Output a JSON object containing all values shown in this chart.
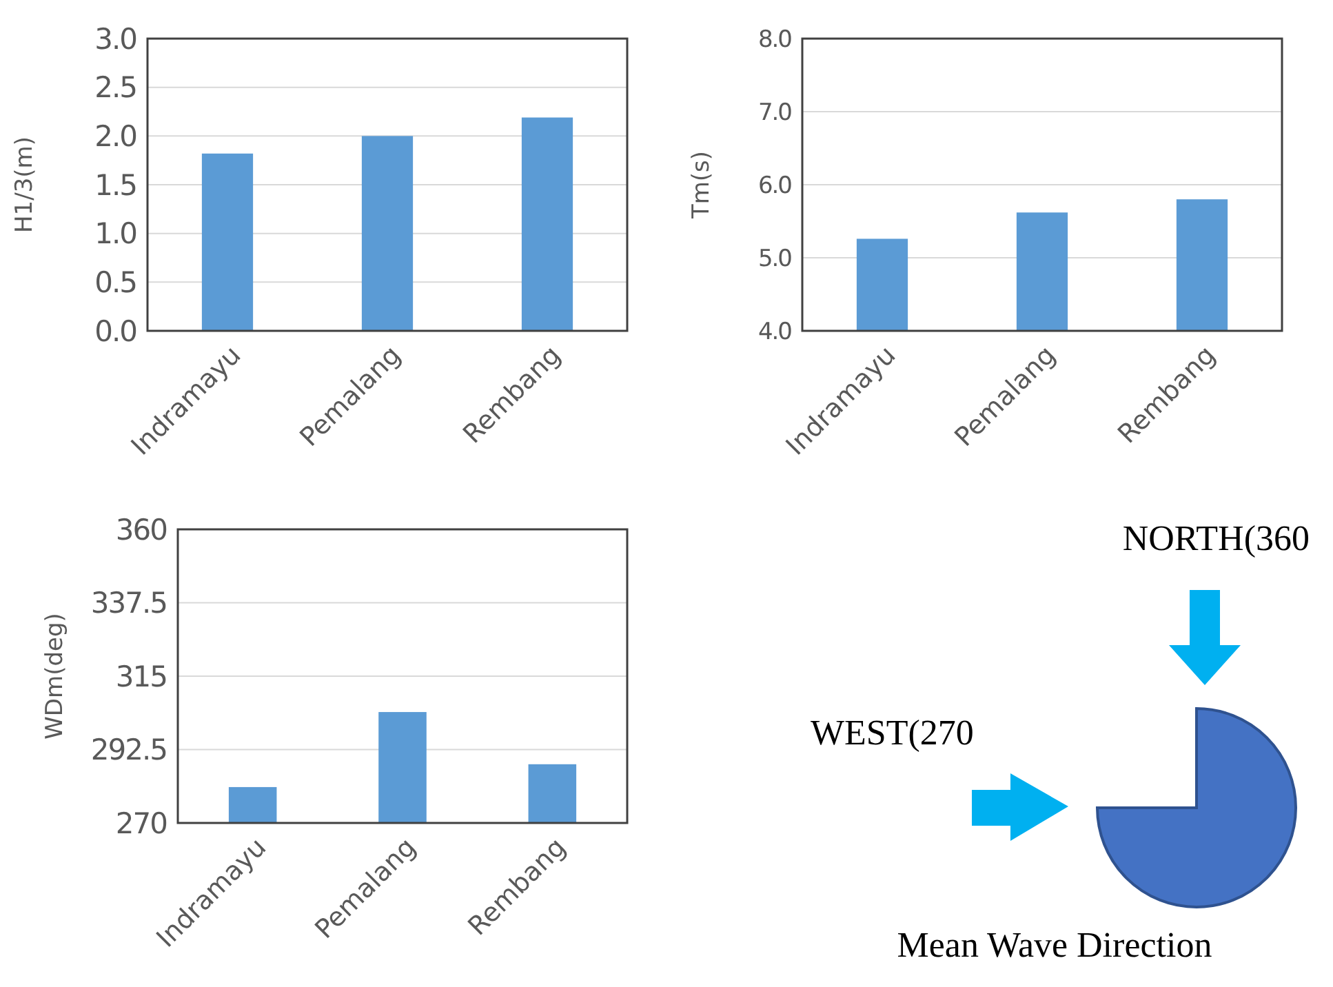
{
  "chart_data": [
    {
      "type": "bar",
      "ylabel": "H1/3(m)",
      "categories": [
        "Indramayu",
        "Pemalang",
        "Rembang"
      ],
      "values": [
        1.82,
        2.0,
        2.19
      ],
      "color": "#5b9bd5",
      "ylim": [
        0,
        3
      ],
      "yticks": [
        {
          "value": 0,
          "label": "0.0"
        },
        {
          "value": 0.5,
          "label": "0.5"
        },
        {
          "value": 1,
          "label": "1.0"
        },
        {
          "value": 1.5,
          "label": "1.5"
        },
        {
          "value": 2,
          "label": "2.0"
        },
        {
          "value": 2.5,
          "label": "2.5"
        },
        {
          "value": 3,
          "label": "3.0"
        }
      ],
      "grid": "y"
    },
    {
      "type": "bar",
      "ylabel": "Tm(s)",
      "categories": [
        "Indramayu",
        "Pemalang",
        "Rembang"
      ],
      "values": [
        5.26,
        5.62,
        5.8
      ],
      "color": "#5b9bd5",
      "ylim": [
        4,
        8
      ],
      "yticks": [
        {
          "value": 4,
          "label": "4.0"
        },
        {
          "value": 5,
          "label": "5.0"
        },
        {
          "value": 6,
          "label": "6.0"
        },
        {
          "value": 7,
          "label": "7.0"
        },
        {
          "value": 8,
          "label": "8.0"
        }
      ],
      "grid": "y"
    },
    {
      "type": "bar",
      "ylabel": "WDm(deg)",
      "categories": [
        "Indramayu",
        "Pemalang",
        "Rembang"
      ],
      "values": [
        281,
        304,
        288
      ],
      "color": "#5b9bd5",
      "ylim": [
        270,
        360
      ],
      "yticks": [
        270,
        292.5,
        315,
        337.5,
        360
      ],
      "grid": "y"
    },
    {
      "type": "other",
      "title": "Mean Wave Direction",
      "annotations": [
        "NORTH(360",
        "WEST(270"
      ]
    }
  ]
}
